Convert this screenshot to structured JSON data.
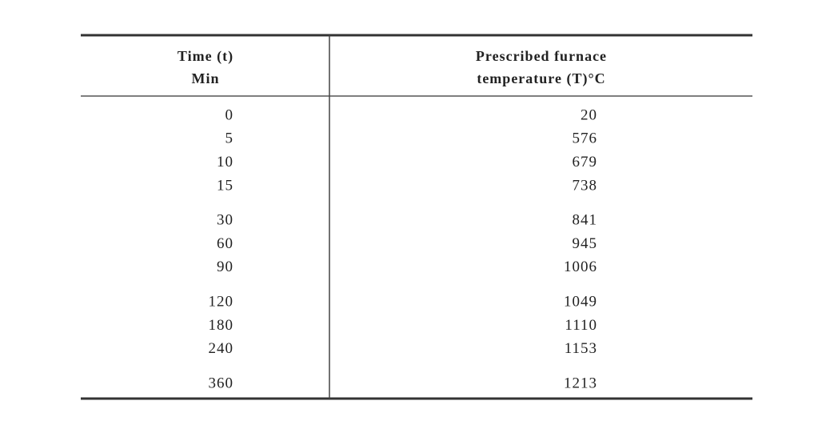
{
  "table": {
    "header": [
      [
        "Time (t)",
        "Min"
      ],
      [
        "Prescribed furnace",
        "temperature (T)°C"
      ]
    ],
    "groups": [
      [
        [
          0,
          20
        ],
        [
          5,
          576
        ],
        [
          10,
          679
        ],
        [
          15,
          738
        ]
      ],
      [
        [
          30,
          841
        ],
        [
          60,
          945
        ],
        [
          90,
          1006
        ]
      ],
      [
        [
          120,
          1049
        ],
        [
          180,
          1110
        ],
        [
          240,
          1153
        ]
      ],
      [
        [
          360,
          1213
        ]
      ]
    ]
  }
}
